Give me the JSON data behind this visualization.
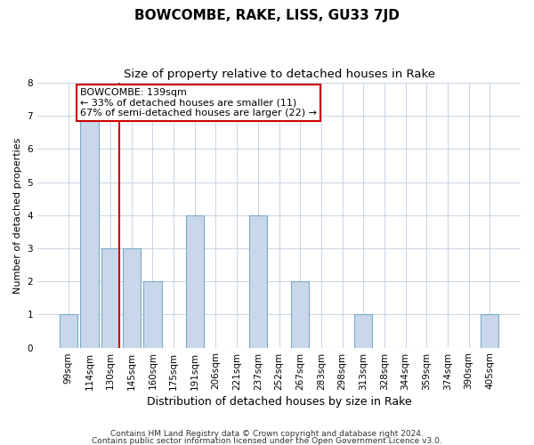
{
  "title": "BOWCOMBE, RAKE, LISS, GU33 7JD",
  "subtitle": "Size of property relative to detached houses in Rake",
  "xlabel": "Distribution of detached houses by size in Rake",
  "ylabel": "Number of detached properties",
  "bar_labels": [
    "99sqm",
    "114sqm",
    "130sqm",
    "145sqm",
    "160sqm",
    "175sqm",
    "191sqm",
    "206sqm",
    "221sqm",
    "237sqm",
    "252sqm",
    "267sqm",
    "283sqm",
    "298sqm",
    "313sqm",
    "328sqm",
    "344sqm",
    "359sqm",
    "374sqm",
    "390sqm",
    "405sqm"
  ],
  "bar_values": [
    1,
    7,
    3,
    3,
    2,
    0,
    4,
    0,
    0,
    4,
    0,
    2,
    0,
    0,
    1,
    0,
    0,
    0,
    0,
    0,
    1
  ],
  "bar_color": "#c8d8ea",
  "bar_edge_color": "#7aaac8",
  "property_bar_index": 2,
  "property_line_color": "#cc0000",
  "annotation_line1": "BOWCOMBE: 139sqm",
  "annotation_line2": "← 33% of detached houses are smaller (11)",
  "annotation_line3": "67% of semi-detached houses are larger (22) →",
  "annotation_box_color": "#ffffff",
  "annotation_box_edge_color": "#cc0000",
  "ylim": [
    0,
    8
  ],
  "yticks": [
    0,
    1,
    2,
    3,
    4,
    5,
    6,
    7,
    8
  ],
  "background_color": "#ffffff",
  "grid_color": "#c8d4e4",
  "footer_line1": "Contains HM Land Registry data © Crown copyright and database right 2024.",
  "footer_line2": "Contains public sector information licensed under the Open Government Licence v3.0.",
  "title_fontsize": 11,
  "subtitle_fontsize": 9.5,
  "xlabel_fontsize": 9,
  "ylabel_fontsize": 8,
  "tick_fontsize": 7.5,
  "footer_fontsize": 6.5,
  "annotation_fontsize": 8
}
